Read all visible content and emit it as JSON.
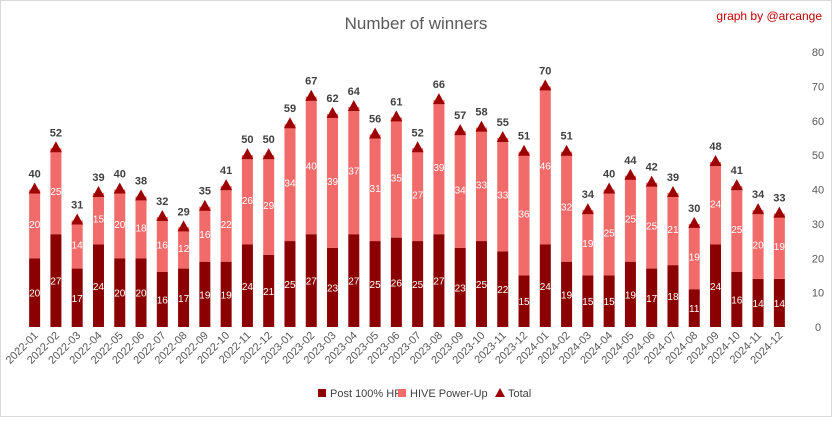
{
  "chart_data": {
    "type": "bar",
    "title": "Number of winners",
    "credit": "graph by @arcange",
    "categories": [
      "2022-01",
      "2022-02",
      "2022-03",
      "2022-04",
      "2022-05",
      "2022-06",
      "2022-07",
      "2022-08",
      "2022-09",
      "2022-10",
      "2022-11",
      "2022-12",
      "2023-01",
      "2023-02",
      "2023-03",
      "2023-04",
      "2023-05",
      "2023-06",
      "2023-07",
      "2023-08",
      "2023-09",
      "2023-10",
      "2023-11",
      "2023-12",
      "2024-01",
      "2024-02",
      "2024-03",
      "2024-04",
      "2024-05",
      "2024-06",
      "2024-07",
      "2024-08",
      "2024-09",
      "2024-10",
      "2024-11",
      "2024-12"
    ],
    "series": [
      {
        "name": "Post 100% HP",
        "color": "#8b0000",
        "values": [
          20,
          27,
          17,
          24,
          20,
          20,
          16,
          17,
          19,
          19,
          24,
          21,
          25,
          27,
          23,
          27,
          25,
          26,
          25,
          27,
          23,
          25,
          22,
          15,
          24,
          19,
          15,
          15,
          19,
          17,
          18,
          11,
          24,
          16,
          14,
          14
        ]
      },
      {
        "name": "HIVE Power-Up",
        "color": "#f26b6b",
        "values": [
          20,
          25,
          14,
          15,
          20,
          18,
          16,
          12,
          16,
          22,
          26,
          29,
          34,
          40,
          39,
          37,
          31,
          35,
          27,
          39,
          34,
          33,
          33,
          36,
          46,
          32,
          19,
          25,
          25,
          25,
          21,
          19,
          24,
          25,
          20,
          19
        ]
      },
      {
        "name": "Total",
        "color": "#9c0000",
        "values": [
          40,
          52,
          31,
          39,
          40,
          38,
          32,
          29,
          35,
          41,
          50,
          50,
          59,
          67,
          62,
          64,
          56,
          61,
          52,
          66,
          57,
          58,
          55,
          51,
          70,
          51,
          34,
          40,
          44,
          42,
          39,
          30,
          48,
          41,
          34,
          33
        ]
      }
    ],
    "ylim": [
      0,
      80
    ],
    "yticks": [
      0,
      10,
      20,
      30,
      40,
      50,
      60,
      70,
      80
    ],
    "y_axis_side": "right",
    "stacked": true,
    "legend": "bottom",
    "grid": false
  }
}
